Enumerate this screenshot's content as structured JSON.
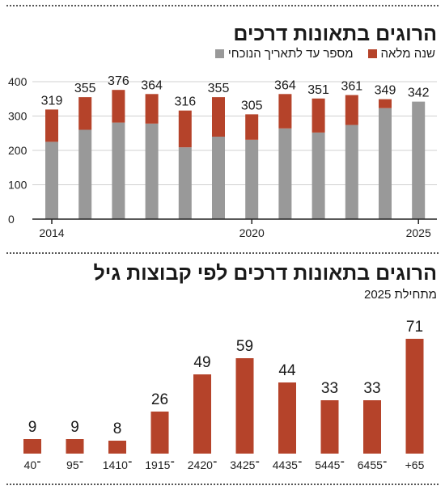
{
  "colors": {
    "gray": "#999999",
    "red": "#b5432a",
    "axis": "#222222",
    "grid": "#d0d0d0"
  },
  "chart_data": [
    {
      "type": "bar",
      "stacked": true,
      "title": "הרוגים בתאונות דרכים",
      "legend": [
        "מספר עד לתאריך הנוכחי",
        "שנה מלאה"
      ],
      "x": [
        2014,
        2015,
        2016,
        2017,
        2018,
        2019,
        2020,
        2021,
        2022,
        2023,
        2024,
        2025
      ],
      "x_tick_labels": [
        "2014",
        "2020",
        "2025"
      ],
      "x_tick_values": [
        2014,
        2020,
        2025
      ],
      "series": [
        {
          "name": "מספר עד לתאריך הנוכחי",
          "values": [
            225,
            260,
            281,
            278,
            209,
            240,
            231,
            264,
            252,
            274,
            323,
            342
          ]
        },
        {
          "name": "שנה מלאה",
          "values": [
            94,
            95,
            95,
            86,
            107,
            115,
            74,
            100,
            99,
            87,
            26,
            0
          ]
        }
      ],
      "totals": [
        319,
        355,
        376,
        364,
        316,
        355,
        305,
        364,
        351,
        361,
        349,
        342
      ],
      "total_labels": [
        "319",
        "355",
        "376",
        "364",
        "316",
        "355",
        "305",
        "364",
        "351",
        "361",
        "349",
        "342"
      ],
      "y_ticks": [
        0,
        100,
        200,
        300,
        400
      ],
      "y_tick_labels": [
        "0",
        "100",
        "200",
        "300",
        "400"
      ],
      "ylim": [
        0,
        420
      ],
      "grid": true,
      "legend_position": "top-right"
    },
    {
      "type": "bar",
      "title": "הרוגים בתאונות דרכים לפי קבוצות גיל",
      "subtitle": "מתחילת 2025",
      "categories": [
        "4־0",
        "9־5",
        "14־10",
        "19־15",
        "24־20",
        "34־25",
        "44־35",
        "54־45",
        "64־55",
        "+65"
      ],
      "values": [
        9,
        9,
        8,
        26,
        49,
        59,
        44,
        33,
        33,
        71
      ],
      "value_labels": [
        "9",
        "9",
        "8",
        "26",
        "49",
        "59",
        "44",
        "33",
        "33",
        "71"
      ],
      "ylim": [
        0,
        75
      ],
      "grid": false
    }
  ]
}
